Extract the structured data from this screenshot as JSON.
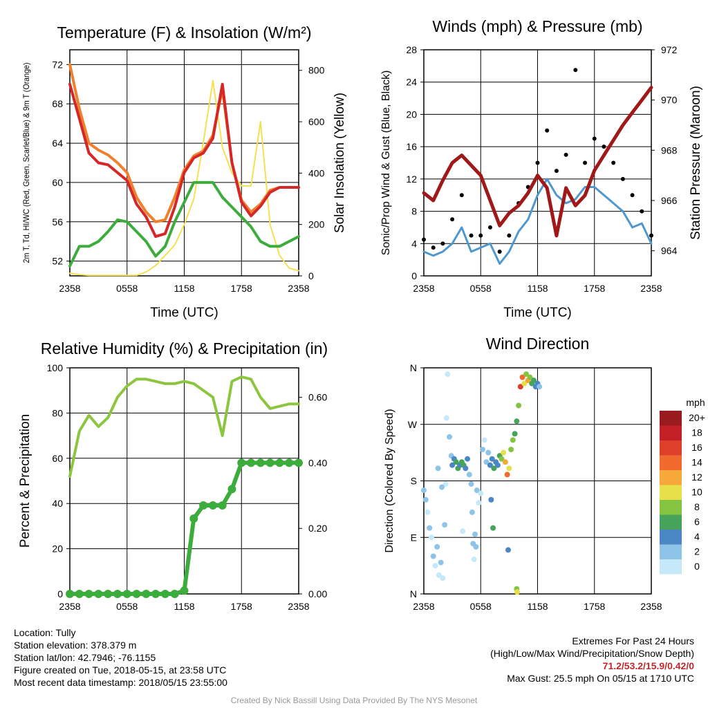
{
  "station": {
    "location": "Location: Tully",
    "elevation": "Station elevation: 378.379 m",
    "latlon": "Station lat/lon: 42.7946; -76.1155",
    "created": "Figure created on Tue, 2018-05-15, at 23:58 UTC",
    "recent": "Most recent data timestamp: 2018/05/15 23:55:00"
  },
  "extremes": {
    "title": "Extremes For Past 24 Hours",
    "subtitle": "(High/Low/Max Wind/Precipitation/Snow Depth)",
    "values": "71.2/53.2/15.9/0.42/0",
    "gust": "Max Gust: 25.5 mph On 05/15 at 1710 UTC"
  },
  "credit": "Created By Nick Bassill Using Data Provided By The NYS Mesonet",
  "colors": {
    "red": "#d62728",
    "orange": "#f07f2e",
    "green": "#3cad3c",
    "yellow": "#f5e050",
    "blue": "#4e97cf",
    "maroon": "#a01818",
    "lightgreen": "#8cc63f",
    "precip": "#3cad3c"
  },
  "x_ticks": [
    "2358",
    "0558",
    "1158",
    "1758",
    "2358"
  ],
  "chart_data": [
    {
      "type": "line",
      "title": "Temperature (F) & Insolation (W/m²)",
      "xlabel": "Time (UTC)",
      "ylabel": "2m T, Td, HI/WC (Red, Green, Scarlet/Blue) & 9m T (Orange)",
      "y2label": "Solar Insolation (Yellow)",
      "ylim": [
        50.5,
        73.5
      ],
      "y2lim": [
        0,
        880
      ],
      "yticks": [
        "52",
        "56",
        "60",
        "64",
        "68",
        "72"
      ],
      "y2ticks": [
        "0",
        "200",
        "400",
        "600",
        "800"
      ],
      "x": [
        0,
        1,
        2,
        3,
        4,
        5,
        6,
        7,
        8,
        9,
        10,
        11,
        12,
        13,
        14,
        15,
        16,
        17,
        18,
        19,
        20,
        21,
        22,
        23,
        24
      ],
      "series": [
        {
          "key": "t2m",
          "color": "#d62728",
          "axis": "y",
          "values": [
            70.0,
            66.5,
            63.0,
            62.0,
            61.8,
            61.0,
            60.2,
            57.8,
            56.5,
            54.5,
            54.8,
            57.5,
            61.0,
            62.5,
            63.0,
            64.5,
            70.0,
            62.0,
            58.0,
            56.6,
            57.6,
            59.0,
            59.5,
            59.5,
            59.5
          ]
        },
        {
          "key": "t9m",
          "color": "#f07f2e",
          "axis": "y",
          "values": [
            72.0,
            67.5,
            64.0,
            63.3,
            62.8,
            62.0,
            61.0,
            58.5,
            57.0,
            56.0,
            56.2,
            58.5,
            61.3,
            62.7,
            63.2,
            64.8,
            69.5,
            62.0,
            58.2,
            57.0,
            57.8,
            59.2,
            59.5,
            59.5,
            59.5
          ]
        },
        {
          "key": "td",
          "color": "#3cad3c",
          "axis": "y",
          "values": [
            51.5,
            53.5,
            53.5,
            54.0,
            55.0,
            56.2,
            56.0,
            55.0,
            54.0,
            52.5,
            53.5,
            56.0,
            58.0,
            60.0,
            60.0,
            60.0,
            58.5,
            57.5,
            56.5,
            55.5,
            54.0,
            53.5,
            53.5,
            54.0,
            54.5
          ]
        },
        {
          "key": "solar",
          "color": "#f5e050",
          "axis": "y2",
          "values": [
            10,
            5,
            2,
            2,
            2,
            2,
            2,
            2,
            15,
            40,
            80,
            120,
            200,
            300,
            520,
            760,
            500,
            400,
            350,
            350,
            600,
            200,
            80,
            30,
            20
          ]
        }
      ]
    },
    {
      "type": "line",
      "title": "Winds (mph) & Pressure (mb)",
      "xlabel": "Time (UTC)",
      "ylabel": "Sonic/Prop Wind & Gust (Blue, Black)",
      "y2label": "Station Pressure (Maroon)",
      "ylim": [
        0,
        28
      ],
      "y2lim": [
        963,
        972
      ],
      "yticks": [
        "0",
        "4",
        "8",
        "12",
        "16",
        "20",
        "24",
        "28"
      ],
      "y2ticks": [
        "964",
        "966",
        "968",
        "970",
        "972"
      ],
      "x": [
        0,
        1,
        2,
        3,
        4,
        5,
        6,
        7,
        8,
        9,
        10,
        11,
        12,
        13,
        14,
        15,
        16,
        17,
        18,
        19,
        20,
        21,
        22,
        23,
        24
      ],
      "series": [
        {
          "key": "wind",
          "color": "#4e97cf",
          "axis": "y",
          "values": [
            3,
            2.5,
            3,
            4,
            6,
            3,
            3.5,
            4,
            1.5,
            3,
            5.5,
            7,
            10,
            12,
            10,
            9,
            9.5,
            11,
            11,
            10,
            9,
            8,
            6,
            6.5,
            4
          ]
        },
        {
          "key": "gust",
          "color": "#000000",
          "axis": "y",
          "values": [
            4.5,
            3.5,
            4,
            7,
            10,
            5,
            5,
            6,
            3,
            5,
            9,
            11,
            14,
            18,
            13,
            15,
            25.5,
            14,
            17,
            16,
            14,
            12,
            10,
            8,
            5
          ]
        },
        {
          "key": "pressure",
          "color": "#a01818",
          "axis": "y2",
          "values": [
            966.3,
            966.0,
            966.8,
            967.5,
            967.8,
            967.4,
            967.0,
            966.0,
            965.0,
            965.5,
            965.8,
            966.3,
            967.0,
            966.5,
            964.6,
            966.5,
            965.8,
            966.2,
            967.2,
            967.8,
            968.4,
            969.0,
            969.5,
            970.0,
            970.5
          ]
        }
      ]
    },
    {
      "type": "line",
      "title": "Relative Humidity (%) & Precipitation (in)",
      "xlabel": "",
      "ylabel": "Percent & Precipitation",
      "ylim": [
        0,
        100
      ],
      "y2lim": [
        0,
        0.69
      ],
      "yticks": [
        "0",
        "20",
        "40",
        "60",
        "80",
        "100"
      ],
      "y2ticks": [
        "0.00",
        "0.20",
        "0.40",
        "0.60"
      ],
      "x": [
        0,
        1,
        2,
        3,
        4,
        5,
        6,
        7,
        8,
        9,
        10,
        11,
        12,
        13,
        14,
        15,
        16,
        17,
        18,
        19,
        20,
        21,
        22,
        23,
        24
      ],
      "series": [
        {
          "key": "rh",
          "color": "#8cc63f",
          "axis": "y",
          "values": [
            52,
            72,
            79,
            74,
            78,
            87,
            92,
            95,
            95,
            94,
            93,
            93,
            94,
            93,
            90,
            87,
            70,
            94,
            96,
            95,
            87,
            82,
            83,
            84,
            84
          ]
        },
        {
          "key": "precip",
          "color": "#3cad3c",
          "axis": "y2",
          "values": [
            0,
            0,
            0,
            0,
            0,
            0,
            0,
            0,
            0,
            0,
            0,
            0,
            0.01,
            0.23,
            0.27,
            0.27,
            0.27,
            0.32,
            0.4,
            0.4,
            0.4,
            0.4,
            0.4,
            0.4,
            0.4
          ]
        }
      ]
    },
    {
      "type": "scatter",
      "title": "Wind Direction",
      "xlabel": "",
      "ylabel": "Direction (Colored By Speed)",
      "ylim": [
        0,
        360
      ],
      "yticks": [
        "N",
        "E",
        "S",
        "W",
        "N"
      ],
      "legend_title": "mph",
      "legend_labels": [
        "0",
        "2",
        "4",
        "6",
        "8",
        "10",
        "12",
        "14",
        "16",
        "18",
        "20+"
      ],
      "legend_colors": [
        "#c6e9f9",
        "#8dc4e8",
        "#4b87c4",
        "#46a35a",
        "#84c441",
        "#e8e04a",
        "#f6a838",
        "#ef6a2c",
        "#de3f2a",
        "#c22026",
        "#9a1b1e"
      ],
      "points": [
        {
          "x": 0.0,
          "dir": 165,
          "spd": 3
        },
        {
          "x": 0.2,
          "dir": 150,
          "spd": 2
        },
        {
          "x": 0.4,
          "dir": 130,
          "spd": 1
        },
        {
          "x": 0.6,
          "dir": 105,
          "spd": 2
        },
        {
          "x": 0.8,
          "dir": 90,
          "spd": 1
        },
        {
          "x": 1.0,
          "dir": 60,
          "spd": 2
        },
        {
          "x": 1.2,
          "dir": 45,
          "spd": 1
        },
        {
          "x": 1.4,
          "dir": 75,
          "spd": 2
        },
        {
          "x": 1.6,
          "dir": 30,
          "spd": 1
        },
        {
          "x": 1.8,
          "dir": 50,
          "spd": 2
        },
        {
          "x": 2.0,
          "dir": 25,
          "spd": 1
        },
        {
          "x": 2.2,
          "dir": 110,
          "spd": 2
        },
        {
          "x": 2.3,
          "dir": 175,
          "spd": 1
        },
        {
          "x": 2.4,
          "dir": 280,
          "spd": 1
        },
        {
          "x": 2.5,
          "dir": 350,
          "spd": 0
        },
        {
          "x": 2.7,
          "dir": 250,
          "spd": 2
        },
        {
          "x": 2.9,
          "dir": 220,
          "spd": 3
        },
        {
          "x": 3.0,
          "dir": 205,
          "spd": 4
        },
        {
          "x": 3.2,
          "dir": 215,
          "spd": 5
        },
        {
          "x": 3.4,
          "dir": 210,
          "spd": 6
        },
        {
          "x": 3.6,
          "dir": 200,
          "spd": 7
        },
        {
          "x": 3.8,
          "dir": 205,
          "spd": 5
        },
        {
          "x": 4.0,
          "dir": 210,
          "spd": 6
        },
        {
          "x": 4.2,
          "dir": 205,
          "spd": 7
        },
        {
          "x": 4.4,
          "dir": 200,
          "spd": 5
        },
        {
          "x": 4.6,
          "dir": 215,
          "spd": 4
        },
        {
          "x": 4.8,
          "dir": 190,
          "spd": 3
        },
        {
          "x": 5.0,
          "dir": 175,
          "spd": 2
        },
        {
          "x": 5.1,
          "dir": 130,
          "spd": 2
        },
        {
          "x": 5.2,
          "dir": 80,
          "spd": 2
        },
        {
          "x": 5.3,
          "dir": 55,
          "spd": 1
        },
        {
          "x": 5.4,
          "dir": 95,
          "spd": 2
        },
        {
          "x": 5.5,
          "dir": 75,
          "spd": 3
        },
        {
          "x": 5.6,
          "dir": 165,
          "spd": 2
        },
        {
          "x": 5.8,
          "dir": 145,
          "spd": 1
        },
        {
          "x": 6.0,
          "dir": 160,
          "spd": 1
        },
        {
          "x": 6.2,
          "dir": 230,
          "spd": 2
        },
        {
          "x": 6.4,
          "dir": 245,
          "spd": 1
        },
        {
          "x": 6.6,
          "dir": 210,
          "spd": 2
        },
        {
          "x": 6.8,
          "dir": 225,
          "spd": 3
        },
        {
          "x": 7.0,
          "dir": 205,
          "spd": 4
        },
        {
          "x": 7.2,
          "dir": 215,
          "spd": 5
        },
        {
          "x": 7.4,
          "dir": 200,
          "spd": 6
        },
        {
          "x": 7.6,
          "dir": 210,
          "spd": 4
        },
        {
          "x": 7.8,
          "dir": 205,
          "spd": 5
        },
        {
          "x": 8.0,
          "dir": 220,
          "spd": 6
        },
        {
          "x": 8.2,
          "dir": 215,
          "spd": 8
        },
        {
          "x": 8.4,
          "dir": 225,
          "spd": 10
        },
        {
          "x": 8.6,
          "dir": 210,
          "spd": 12
        },
        {
          "x": 8.8,
          "dir": 190,
          "spd": 15
        },
        {
          "x": 9.0,
          "dir": 200,
          "spd": 11
        },
        {
          "x": 9.2,
          "dir": 230,
          "spd": 9
        },
        {
          "x": 9.4,
          "dir": 245,
          "spd": 8
        },
        {
          "x": 9.6,
          "dir": 255,
          "spd": 7
        },
        {
          "x": 9.8,
          "dir": 275,
          "spd": 6
        },
        {
          "x": 10.0,
          "dir": 300,
          "spd": 8
        },
        {
          "x": 10.2,
          "dir": 330,
          "spd": 16
        },
        {
          "x": 10.4,
          "dir": 345,
          "spd": 14
        },
        {
          "x": 10.6,
          "dir": 335,
          "spd": 10
        },
        {
          "x": 10.8,
          "dir": 350,
          "spd": 8
        },
        {
          "x": 11.0,
          "dir": 340,
          "spd": 12
        },
        {
          "x": 11.2,
          "dir": 345,
          "spd": 9
        },
        {
          "x": 11.4,
          "dir": 335,
          "spd": 7
        },
        {
          "x": 11.6,
          "dir": 340,
          "spd": 6
        },
        {
          "x": 11.8,
          "dir": 330,
          "spd": 5
        },
        {
          "x": 12.0,
          "dir": 335,
          "spd": 4
        },
        {
          "x": 12.2,
          "dir": 330,
          "spd": 3
        },
        {
          "x": 9.8,
          "dir": 8,
          "spd": 8
        },
        {
          "x": 9.85,
          "dir": 3,
          "spd": 10
        },
        {
          "x": 1.5,
          "dir": 200,
          "spd": 2
        },
        {
          "x": 1.9,
          "dir": 170,
          "spd": 3
        },
        {
          "x": 7.1,
          "dir": 150,
          "spd": 5
        },
        {
          "x": 7.3,
          "dir": 105,
          "spd": 6
        },
        {
          "x": 8.9,
          "dir": 70,
          "spd": 4
        },
        {
          "x": 4.1,
          "dir": 100,
          "spd": 1
        }
      ]
    }
  ]
}
